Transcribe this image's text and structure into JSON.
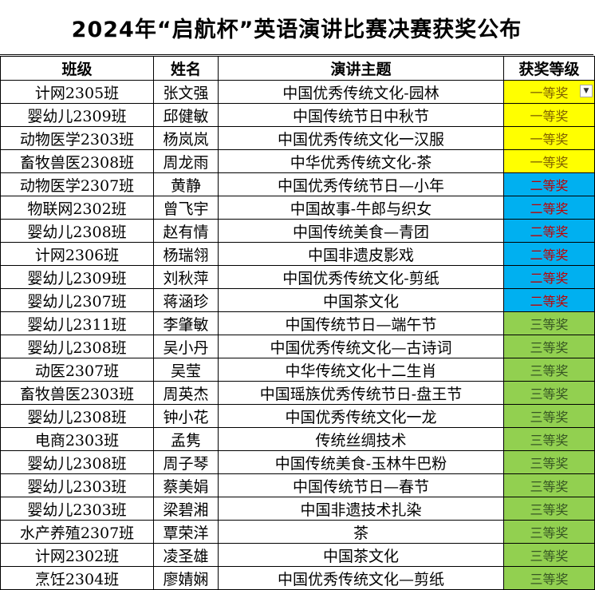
{
  "sheet": {
    "title": "2024年“启航杯”英语演讲比赛决赛获奖公布",
    "headers": {
      "class": "班级",
      "name": "姓名",
      "topic": "演讲主题",
      "award": "获奖等级"
    },
    "dropdown_icon": "chevron-down-icon",
    "award_colors": {
      "一等奖": "#ffff00",
      "二等奖": "#00b0f0",
      "三等奖": "#92d050"
    },
    "rows": [
      {
        "class": "计网2305班",
        "name": "张文强",
        "topic": "中国优秀传统文化-园林",
        "award": "一等奖"
      },
      {
        "class": "婴幼儿2309班",
        "name": "邱健敏",
        "topic": "中国传统节日中秋节",
        "award": "一等奖"
      },
      {
        "class": "动物医学2303班",
        "name": "杨岚岚",
        "topic": "中国优秀传统文化一汉服",
        "award": "一等奖"
      },
      {
        "class": "畜牧兽医2308班",
        "name": "周龙雨",
        "topic": "中华优秀传统文化-茶",
        "award": "一等奖"
      },
      {
        "class": "动物医学2307班",
        "name": "黄静",
        "topic": "中国优秀传统节日—小年",
        "award": "二等奖"
      },
      {
        "class": "物联网2302班",
        "name": "曾飞宇",
        "topic": "中国故事-牛郎与织女",
        "award": "二等奖"
      },
      {
        "class": "婴幼儿2308班",
        "name": "赵有情",
        "topic": "中国传统美食—青团",
        "award": "二等奖"
      },
      {
        "class": "计网2306班",
        "name": "杨瑞翎",
        "topic": "中国非遗皮影戏",
        "award": "二等奖"
      },
      {
        "class": "婴幼儿2309班",
        "name": "刘秋萍",
        "topic": "中国优秀传统文化-剪纸",
        "award": "二等奖"
      },
      {
        "class": "婴幼儿2307班",
        "name": "蒋涵珍",
        "topic": "中国茶文化",
        "award": "二等奖"
      },
      {
        "class": "婴幼儿2311班",
        "name": "李肇敏",
        "topic": "中国传统节日—端午节",
        "award": "三等奖"
      },
      {
        "class": "婴幼儿2308班",
        "name": "吴小丹",
        "topic": "中国优秀传统文化—古诗词",
        "award": "三等奖"
      },
      {
        "class": "动医2307班",
        "name": "吴莹",
        "topic": "中华传统文化十二生肖",
        "award": "三等奖"
      },
      {
        "class": "畜牧兽医2303班",
        "name": "周英杰",
        "topic": "中国瑶族优秀传统节日-盘王节",
        "award": "三等奖"
      },
      {
        "class": "婴幼儿2308班",
        "name": "钟小花",
        "topic": "中国优秀传统文化一龙",
        "award": "三等奖"
      },
      {
        "class": "电商2303班",
        "name": "孟隽",
        "topic": "传统丝绸技术",
        "award": "三等奖"
      },
      {
        "class": "婴幼儿2308班",
        "name": "周子琴",
        "topic": "中国传统美食-玉林牛巴粉",
        "award": "三等奖"
      },
      {
        "class": "婴幼儿2303班",
        "name": "蔡美娟",
        "topic": "中国传统节日—春节",
        "award": "三等奖"
      },
      {
        "class": "婴幼儿2303班",
        "name": "梁碧湘",
        "topic": "中国非遗技术扎染",
        "award": "三等奖"
      },
      {
        "class": "水产养殖2307班",
        "name": "覃荣洋",
        "topic": "茶",
        "award": "三等奖"
      },
      {
        "class": "计网2302班",
        "name": "凌圣雄",
        "topic": "中国茶文化",
        "award": "三等奖"
      },
      {
        "class": "烹饪2304班",
        "name": "廖婧娴",
        "topic": "中国优秀传统文化—剪纸",
        "award": "三等奖"
      }
    ]
  }
}
